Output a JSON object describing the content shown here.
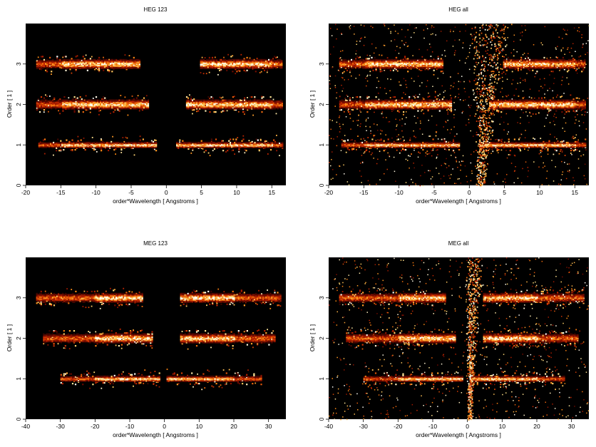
{
  "chart_data": [
    {
      "type": "heatmap",
      "title": "HEG 123",
      "xlabel": "order*Wavelength [ Angstroms ]",
      "ylabel": "Order [ 1 ]",
      "xlim": [
        -20,
        17
      ],
      "ylim": [
        0,
        4
      ],
      "xticks": [
        -20,
        -15,
        -10,
        -5,
        0,
        5,
        10,
        15
      ],
      "yticks": [
        0,
        1,
        2,
        3
      ],
      "bands": [
        {
          "order": 1,
          "segments": [
            [
              -18.2,
              -1.4
            ],
            [
              1.4,
              16.5
            ]
          ]
        },
        {
          "order": 2,
          "segments": [
            [
              -18.5,
              -2.5
            ],
            [
              2.8,
              16.5
            ]
          ]
        },
        {
          "order": 3,
          "segments": [
            [
              -18.5,
              -3.8
            ],
            [
              4.8,
              16.5
            ]
          ]
        }
      ],
      "zero_order_arm": false,
      "bright_core_max_x": 15
    },
    {
      "type": "heatmap",
      "title": "HEG all",
      "xlabel": "order*Wavelength [ Angstroms ]",
      "ylabel": "Order [ 1 ]",
      "xlim": [
        -20,
        17
      ],
      "ylim": [
        0,
        4
      ],
      "xticks": [
        -20,
        -15,
        -10,
        -5,
        0,
        5,
        10,
        15
      ],
      "yticks": [
        0,
        1,
        2,
        3
      ],
      "bands": [
        {
          "order": 1,
          "segments": [
            [
              -18.2,
              -1.4
            ],
            [
              1.4,
              16.5
            ]
          ]
        },
        {
          "order": 2,
          "segments": [
            [
              -18.5,
              -2.5
            ],
            [
              2.8,
              16.5
            ]
          ]
        },
        {
          "order": 3,
          "segments": [
            [
              -18.5,
              -3.8
            ],
            [
              4.8,
              16.5
            ]
          ]
        }
      ],
      "zero_order_arm": true,
      "bright_core_max_x": 15
    },
    {
      "type": "heatmap",
      "title": "MEG 123",
      "xlabel": "order*Wavelength [ Angstroms ]",
      "ylabel": "Order [ 1 ]",
      "xlim": [
        -40,
        35
      ],
      "ylim": [
        0,
        4
      ],
      "xticks": [
        -40,
        -30,
        -20,
        -10,
        0,
        10,
        20,
        30
      ],
      "yticks": [
        0,
        1,
        2,
        3
      ],
      "bands": [
        {
          "order": 1,
          "segments": [
            [
              -30,
              -1.4
            ],
            [
              0.6,
              28
            ]
          ]
        },
        {
          "order": 2,
          "segments": [
            [
              -35,
              -3.5
            ],
            [
              4.5,
              32
            ]
          ]
        },
        {
          "order": 3,
          "segments": [
            [
              -37,
              -6.5
            ],
            [
              4.5,
              33.5
            ]
          ]
        }
      ],
      "zero_order_arm": false,
      "bright_core_max_x": 20
    },
    {
      "type": "heatmap",
      "title": "MEG all",
      "xlabel": "order*Wavelength [ Angstroms ]",
      "ylabel": "Order [ 1 ]",
      "xlim": [
        -40,
        35
      ],
      "ylim": [
        0,
        4
      ],
      "xticks": [
        -40,
        -30,
        -20,
        -10,
        0,
        10,
        20,
        30
      ],
      "yticks": [
        0,
        1,
        2,
        3
      ],
      "bands": [
        {
          "order": 1,
          "segments": [
            [
              -30,
              -1.4
            ],
            [
              0.6,
              28
            ]
          ]
        },
        {
          "order": 2,
          "segments": [
            [
              -35,
              -3.5
            ],
            [
              4.5,
              32
            ]
          ]
        },
        {
          "order": 3,
          "segments": [
            [
              -37,
              -6.5
            ],
            [
              4.5,
              33.5
            ]
          ]
        }
      ],
      "zero_order_arm": true,
      "bright_core_max_x": 20
    }
  ]
}
